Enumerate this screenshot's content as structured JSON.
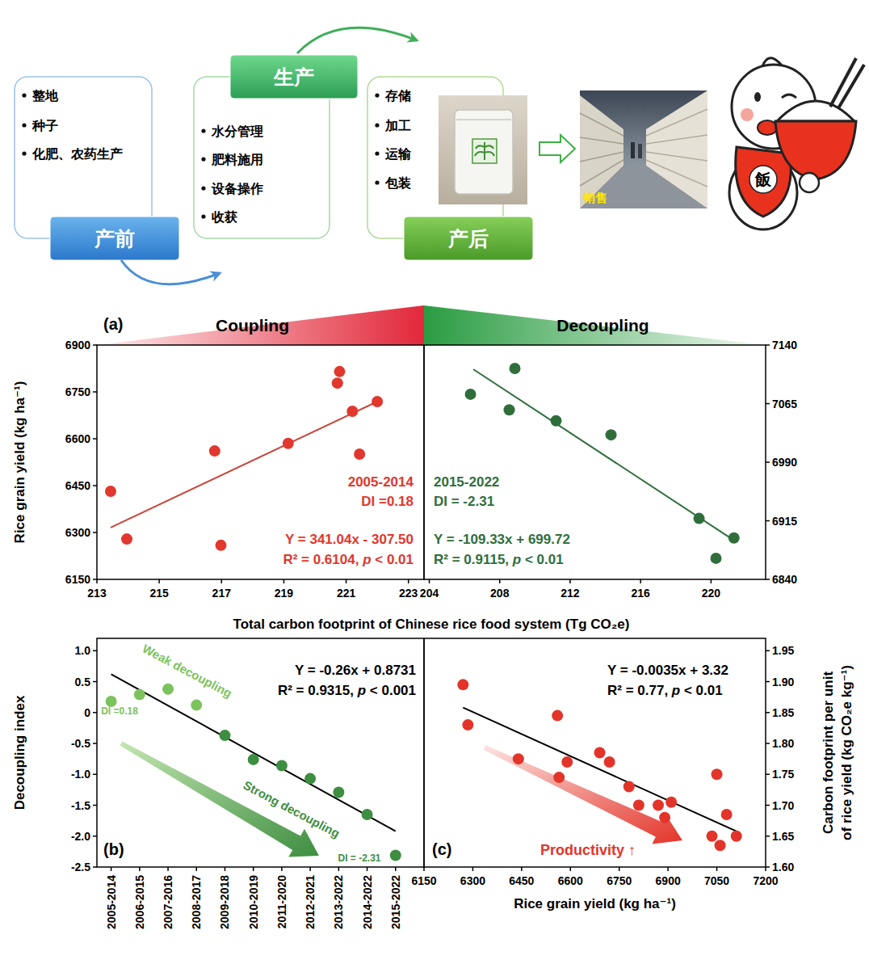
{
  "diagram": {
    "stages": [
      {
        "label": "产前",
        "items": [
          "整地",
          "种子",
          "化肥、农药生产"
        ]
      },
      {
        "label": "生产",
        "items": [
          "水分管理",
          "肥料施用",
          "设备操作",
          "收获"
        ]
      },
      {
        "label": "产后",
        "items": [
          "存储",
          "加工",
          "运输",
          "包装"
        ]
      }
    ],
    "sales_label": "销售",
    "mascot_label": "飯"
  },
  "chart_data": [
    {
      "type": "scatter",
      "panel_label": "(a)",
      "title": "Coupling",
      "xlabel": "Total carbon footprint of Chinese rice food system (Tg CO₂e)",
      "ylabel": "Rice grain yield (kg ha⁻¹)",
      "xlim": [
        213,
        223.5
      ],
      "xticks": [
        213,
        215,
        217,
        219,
        221,
        223
      ],
      "ylim": [
        6150,
        6900
      ],
      "yticks": [
        6150,
        6300,
        6450,
        6600,
        6750,
        6900
      ],
      "series": [
        {
          "x": [
            213.44,
            213.96,
            216.78,
            216.98,
            219.14,
            220.72,
            220.79,
            221.2,
            221.43,
            222
          ],
          "values": [
            6432,
            6279,
            6561,
            6259,
            6585,
            6778,
            6815,
            6688,
            6551,
            6719
          ],
          "color": "#e2372d",
          "marker": "circle"
        }
      ],
      "fit": {
        "x": [
          213.44,
          222
        ],
        "values": [
          6316,
          6719
        ],
        "color": "#c8453a"
      },
      "annotations": [
        {
          "text": "2005-2014",
          "color": "#e2372d"
        },
        {
          "text": "DI =0.18",
          "color": "#e2372d"
        },
        {
          "text": "Y = 341.04x - 307.50",
          "color": "#e2372d"
        },
        {
          "text": "R² = 0.6104, p < 0.01",
          "color": "#e2372d"
        }
      ]
    },
    {
      "type": "scatter",
      "title": "Decoupling",
      "xlim": [
        203.7,
        223.1
      ],
      "xticks": [
        204,
        208,
        212,
        216,
        220
      ],
      "y2lim": [
        6840,
        7140
      ],
      "y2ticks": [
        6840,
        6915,
        6990,
        7065,
        7140
      ],
      "series": [
        {
          "x": [
            206.34,
            208.54,
            208.86,
            211.2,
            214.32,
            219.32,
            220.28,
            221.3
          ],
          "values": [
            7077,
            7057,
            7110,
            7043,
            7025,
            6918,
            6867,
            6893
          ],
          "color": "#2f6e3b",
          "marker": "circle",
          "axis": "y2"
        }
      ],
      "fit": {
        "x": [
          206.5,
          221.3
        ],
        "values": [
          7109,
          6890
        ],
        "color": "#2f6e3b"
      },
      "annotations": [
        {
          "text": "2015-2022",
          "color": "#2f6e3b"
        },
        {
          "text": "DI = -2.31",
          "color": "#2f6e3b"
        },
        {
          "text": "Y = -109.33x + 699.72",
          "color": "#2f6e3b"
        },
        {
          "text": "R² = 0.9115, p < 0.01",
          "color": "#2f6e3b"
        }
      ]
    },
    {
      "type": "scatter",
      "panel_label": "(b)",
      "ylabel": "Decoupling index",
      "categories": [
        "2005-2014",
        "2006-2015",
        "2007-2016",
        "2008-2017",
        "2009-2018",
        "2010-2019",
        "2011-2020",
        "2012-2021",
        "2013-2022",
        "2014-2022",
        "2015-2022"
      ],
      "ylim": [
        -2.5,
        1.2
      ],
      "yticks": [
        -2.5,
        {
          "value": -2,
          "label": "-2.0"
        },
        -1.5,
        {
          "value": -1,
          "label": "-1.0"
        },
        -0.5,
        0,
        0.5,
        {
          "value": 1,
          "label": "1.0"
        }
      ],
      "series": [
        {
          "values": [
            0.18,
            0.29,
            0.38,
            0.12,
            -0.37,
            -0.76,
            -0.86,
            -1.07,
            -1.29,
            -1.65,
            -2.31
          ],
          "colors": [
            "#7cc35d",
            "#7cc35d",
            "#7cc35d",
            "#7cc35d",
            "#3e8e41",
            "#3e8e41",
            "#3e8e41",
            "#3e8e41",
            "#3e8e41",
            "#3e8e41",
            "#3e8e41"
          ],
          "marker": "circle"
        }
      ],
      "fit": {
        "categories": [
          "2005-2014",
          "2015-2022"
        ],
        "values": [
          0.62,
          -1.92
        ],
        "color": "#000000"
      },
      "annotations": [
        {
          "text": "Y = -0.26x + 0.8731",
          "color": "#000000"
        },
        {
          "text": "R² = 0.9315, p < 0.001",
          "color": "#000000"
        },
        {
          "text": "Weak decoupling",
          "color": "#7cc35d"
        },
        {
          "text": "Strong decoupling",
          "color": "#3e8e41"
        },
        {
          "text": "DI =0.18",
          "color": "#7cc35d"
        },
        {
          "text": "DI = -2.31",
          "color": "#3e8e41"
        }
      ]
    },
    {
      "type": "scatter",
      "panel_label": "(c)",
      "xlabel": "Rice grain yield (kg ha⁻¹)",
      "y2label": "Carbon footprint per unit of rice yield (kg CO₂e kg⁻¹)",
      "xlim": [
        6150,
        7200
      ],
      "xticks": [
        6150,
        6300,
        6450,
        6600,
        6750,
        6900,
        7050,
        7200
      ],
      "y2lim": [
        1.6,
        1.97
      ],
      "y2ticks": [
        {
          "value": 1.6,
          "label": "1.60"
        },
        1.65,
        {
          "value": 1.7,
          "label": "1.70"
        },
        1.75,
        {
          "value": 1.8,
          "label": "1.80"
        },
        1.85,
        {
          "value": 1.9,
          "label": "1.90"
        },
        1.95
      ],
      "series": [
        {
          "x": [
            6270,
            6285,
            6440,
            6560,
            6565,
            6590,
            6690,
            6720,
            6780,
            6810,
            6870,
            6890,
            6910,
            7035,
            7050,
            7060,
            7080,
            7110
          ],
          "values": [
            1.895,
            1.83,
            1.775,
            1.845,
            1.745,
            1.77,
            1.785,
            1.77,
            1.73,
            1.7,
            1.7,
            1.68,
            1.705,
            1.65,
            1.75,
            1.635,
            1.685,
            1.65
          ],
          "color": "#e3342a",
          "marker": "circle",
          "axis": "y2"
        }
      ],
      "fit": {
        "x": [
          6270,
          7118
        ],
        "values": [
          1.858,
          1.656
        ],
        "color": "#000000"
      },
      "annotations": [
        {
          "text": "Y = -0.0035x + 3.32",
          "color": "#000000"
        },
        {
          "text": "R² = 0.77, p < 0.01",
          "color": "#000000"
        },
        {
          "text": "Productivity ↑",
          "color": "#e3342a"
        }
      ]
    }
  ]
}
